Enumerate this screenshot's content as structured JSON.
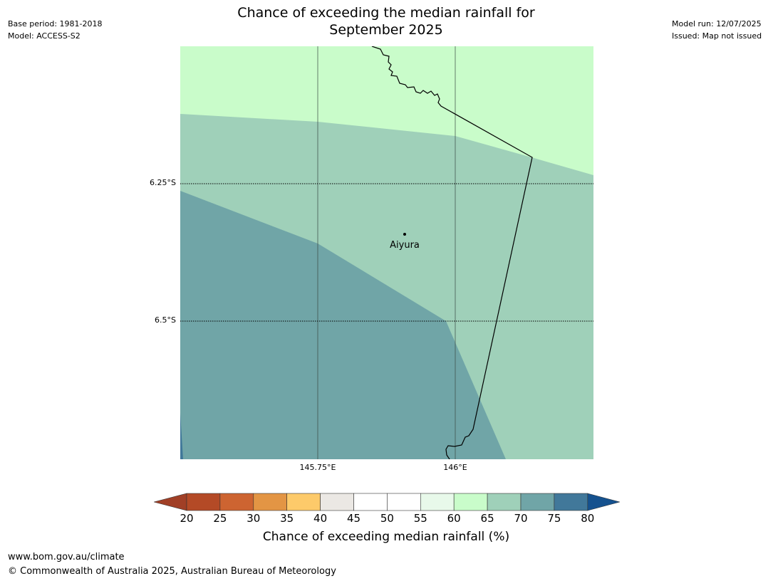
{
  "header": {
    "title_line1": "Chance of exceeding the median rainfall for",
    "title_line2": "September 2025",
    "base_period": "Base period: 1981-2018",
    "model": "Model: ACCESS-S2",
    "model_run": "Model run: 12/07/2025",
    "issued": "Issued: Map not issued"
  },
  "map": {
    "place_label": "Aiyura",
    "lat_labels": [
      "6.25°S",
      "6.5°S"
    ],
    "lon_labels": [
      "145.75°E",
      "146°E"
    ],
    "colors": {
      "c60_65": "#c9fcca",
      "c65_70": "#9fd0b9",
      "c70_75": "#70a5a7",
      "c75_80": "#41789a"
    }
  },
  "legend": {
    "title": "Chance of exceeding median rainfall (%)",
    "ticks": [
      "20",
      "25",
      "30",
      "35",
      "40",
      "45",
      "50",
      "55",
      "60",
      "65",
      "70",
      "75",
      "80"
    ],
    "colors": [
      "#a13f26",
      "#b44a26",
      "#cd6431",
      "#e39544",
      "#fdca6a",
      "#ebe8e4",
      "#ffffff",
      "#ffffff",
      "#e8f9ea",
      "#c9fcca",
      "#9fd0b9",
      "#70a5a7",
      "#41789a",
      "#15518e"
    ]
  },
  "footer": {
    "url": "www.bom.gov.au/climate",
    "copyright": "© Commonwealth of Australia 2025, Australian Bureau of Meteorology"
  }
}
